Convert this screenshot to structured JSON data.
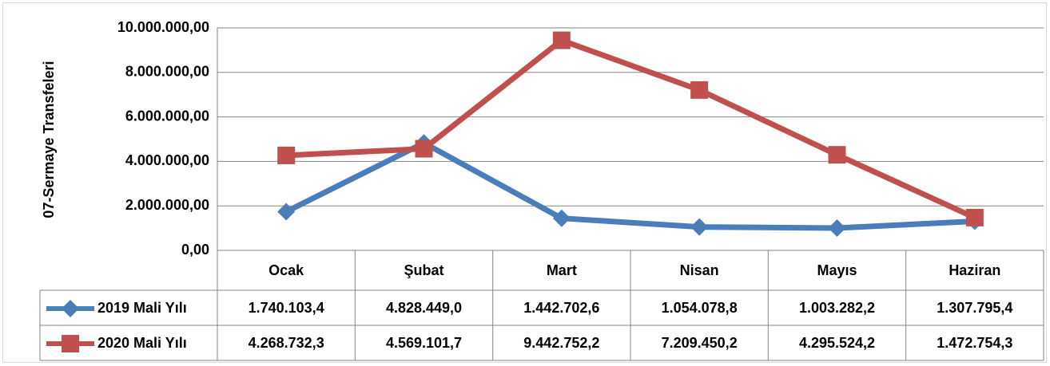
{
  "chart_data": {
    "type": "line",
    "y_axis_label": "07-Sermaye Transfeleri",
    "categories": [
      "Ocak",
      "Şubat",
      "Mart",
      "Nisan",
      "Mayıs",
      "Haziran"
    ],
    "series": [
      {
        "name": "2019 Mali Yılı",
        "color": "#4a7ebb",
        "marker": "diamond",
        "values": [
          1740103.4,
          4828449.0,
          1442702.6,
          1054078.8,
          1003282.2,
          1307795.4
        ],
        "value_labels": [
          "1.740.103,4",
          "4.828.449,0",
          "1.442.702,6",
          "1.054.078,8",
          "1.003.282,2",
          "1.307.795,4"
        ]
      },
      {
        "name": "2020 Mali Yılı",
        "color": "#c0504d",
        "marker": "square",
        "values": [
          4268732.3,
          4569101.7,
          9442752.2,
          7209450.2,
          4295524.2,
          1472754.3
        ],
        "value_labels": [
          "4.268.732,3",
          "4.569.101,7",
          "9.442.752,2",
          "7.209.450,2",
          "4.295.524,2",
          "1.472.754,3"
        ]
      }
    ],
    "ylim": [
      0,
      10000000
    ],
    "yticks": [
      {
        "value": 0,
        "label": "0,00"
      },
      {
        "value": 2000000,
        "label": "2.000.000,00"
      },
      {
        "value": 4000000,
        "label": "4.000.000,00"
      },
      {
        "value": 6000000,
        "label": "6.000.000,00"
      },
      {
        "value": 8000000,
        "label": "8.000.000,00"
      },
      {
        "value": 10000000,
        "label": "10.000.000,00"
      }
    ],
    "grid": true
  }
}
